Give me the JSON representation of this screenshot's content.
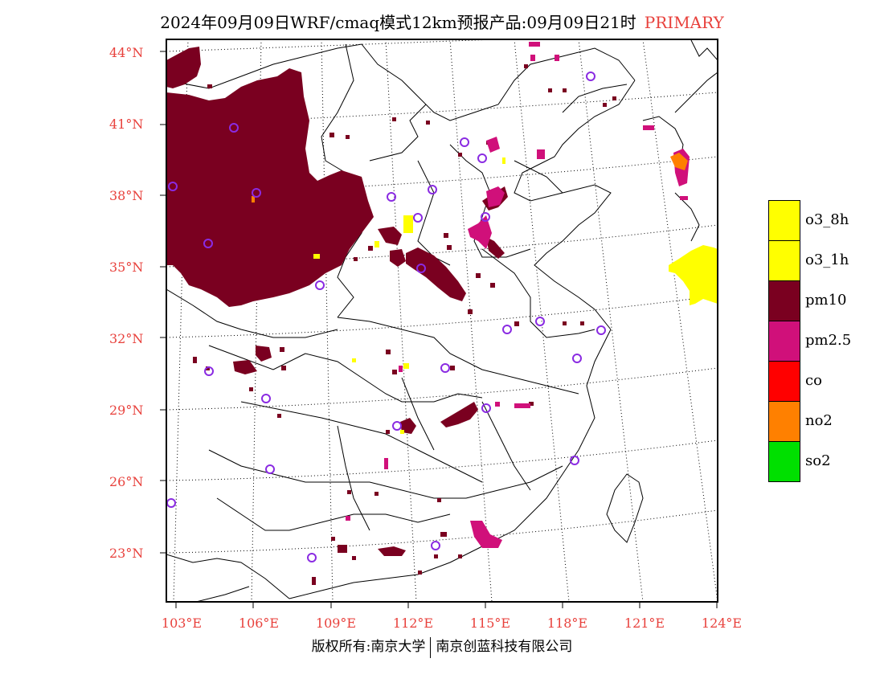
{
  "title": {
    "text": "2024年09月09日WRF/cmaq模式12km预报产品:09月09日21时",
    "tag": "PRIMARY"
  },
  "colors": {
    "label_red": "#e8413c",
    "pm10": "#7a0020",
    "pm25": "#d0107a",
    "o3": "#ffff00",
    "co": "#ff0000",
    "no2": "#ff8000",
    "so2": "#00e000",
    "station": "#8a2be2"
  },
  "lat_labels": [
    "44°N",
    "41°N",
    "38°N",
    "35°N",
    "32°N",
    "29°N",
    "26°N",
    "23°N"
  ],
  "lon_labels": [
    "103°E",
    "106°E",
    "109°E",
    "112°E",
    "115°E",
    "118°E",
    "121°E",
    "124°E"
  ],
  "legend": [
    {
      "label": "o3_8h",
      "color": "#ffff00"
    },
    {
      "label": "o3_1h",
      "color": "#ffff00"
    },
    {
      "label": "pm10",
      "color": "#7a0020"
    },
    {
      "label": "pm2.5",
      "color": "#d0107a"
    },
    {
      "label": "co",
      "color": "#ff0000"
    },
    {
      "label": "no2",
      "color": "#ff8000"
    },
    {
      "label": "so2",
      "color": "#00e000"
    }
  ],
  "footer": {
    "left": "版权所有:南京大学",
    "right": "南京创蓝科技有限公司"
  }
}
